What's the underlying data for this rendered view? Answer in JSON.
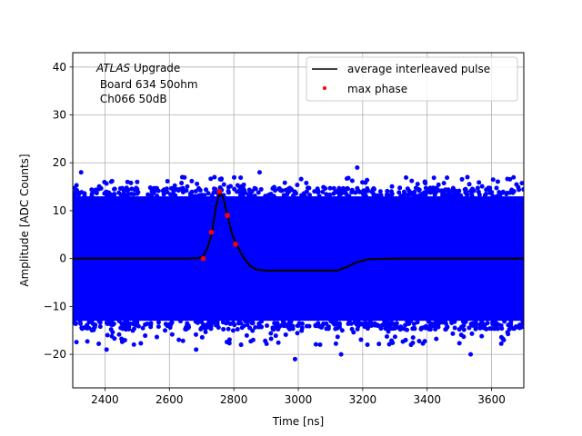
{
  "chart_data": {
    "type": "scatter",
    "title": "",
    "xlabel": "Time [ns]",
    "ylabel": "Amplitude [ADC Counts]",
    "xlim": [
      2300,
      3700
    ],
    "ylim": [
      -27,
      43
    ],
    "xticks": [
      2400,
      2600,
      2800,
      3000,
      3200,
      3400,
      3600
    ],
    "yticks": [
      -20,
      -10,
      0,
      10,
      20,
      30,
      40
    ],
    "grid": true,
    "legend_position": "upper right",
    "annotation": {
      "italic": "ATLAS",
      "rest": " Upgrade",
      "line2": " Board 634 50ohm",
      "line3": " Ch066 50dB"
    },
    "series": [
      {
        "name": "average interleaved pulse",
        "type": "line",
        "color": "#000000",
        "x": [
          2300,
          2400,
          2500,
          2600,
          2650,
          2690,
          2705,
          2720,
          2732,
          2745,
          2757,
          2768,
          2780,
          2795,
          2808,
          2830,
          2850,
          2870,
          2900,
          3000,
          3100,
          3120,
          3150,
          3180,
          3220,
          3300,
          3400,
          3500,
          3600,
          3700
        ],
        "y": [
          0,
          0,
          0,
          0,
          0,
          0.1,
          0.5,
          2.5,
          5.5,
          11,
          14,
          12.5,
          9,
          5,
          3,
          0.2,
          -1.5,
          -2.3,
          -2.5,
          -2.5,
          -2.5,
          -2.5,
          -1.8,
          -0.8,
          -0.1,
          0,
          0,
          0,
          0,
          0
        ]
      },
      {
        "name": "max phase",
        "type": "scatter",
        "color": "#ff0000",
        "x": [
          2705,
          2730,
          2755,
          2780,
          2805
        ],
        "y": [
          0,
          5.5,
          14,
          9,
          3
        ]
      },
      {
        "name": "",
        "type": "scatter",
        "color": "#0000ff",
        "x_range": [
          2300,
          3700
        ],
        "dense_band": [
          -13,
          13
        ],
        "sparse_band": [
          -19,
          19
        ],
        "outliers": [
          {
            "x": 2326,
            "y": 18
          },
          {
            "x": 2470,
            "y": 16
          },
          {
            "x": 2500,
            "y": 16
          },
          {
            "x": 2640,
            "y": 17
          },
          {
            "x": 2740,
            "y": 17
          },
          {
            "x": 2880,
            "y": 18
          },
          {
            "x": 3183,
            "y": 19
          },
          {
            "x": 3525,
            "y": 17
          },
          {
            "x": 2405,
            "y": -19
          },
          {
            "x": 2683,
            "y": -19
          },
          {
            "x": 2990,
            "y": -21
          },
          {
            "x": 3133,
            "y": -20
          },
          {
            "x": 3535,
            "y": -20
          },
          {
            "x": 3350,
            "y": -18
          },
          {
            "x": 2860,
            "y": -17
          }
        ]
      }
    ]
  }
}
